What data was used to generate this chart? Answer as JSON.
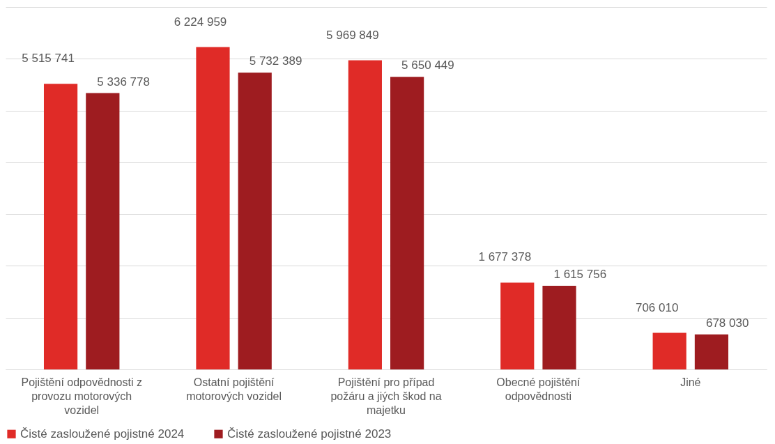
{
  "chart_data": {
    "type": "bar",
    "categories": [
      "Pojištění odpovědnosti z provozu motorových vozidel",
      "Ostatní pojištění motorových vozidel",
      "Pojištění pro případ požáru a jiých škod na majetku",
      "Obecné pojištění odpovědnosti",
      "Jiné"
    ],
    "series": [
      {
        "name": "Čisté zasloužené pojistné 2024",
        "color": "#e02b27",
        "values": [
          5515741,
          6224959,
          5969849,
          1677378,
          706010
        ],
        "value_labels": [
          "5 515 741",
          "6 224 959",
          "5 969 849",
          "1 677 378",
          "706 010"
        ]
      },
      {
        "name": "Čisté zasloužené pojistné 2023",
        "color": "#9e1c20",
        "values": [
          5336778,
          5732389,
          5650449,
          1615756,
          678030
        ],
        "value_labels": [
          "5 336 778",
          "5 732 389",
          "5 650 449",
          "1 615 756",
          "678 030"
        ]
      }
    ],
    "ylim": [
      0,
      7000000
    ],
    "yticks": [
      {
        "value": 0,
        "label": null
      },
      {
        "value": 1000000,
        "label": null
      },
      {
        "value": 2000000,
        "label": null
      },
      {
        "value": 3000000,
        "label": null
      },
      {
        "value": 4000000,
        "label": null
      },
      {
        "value": 5000000,
        "label": null
      },
      {
        "value": 6000000,
        "label": null
      },
      {
        "value": 7000000,
        "label": null
      }
    ],
    "tick_labels": "x",
    "grid": "y",
    "legend": "bottom"
  }
}
